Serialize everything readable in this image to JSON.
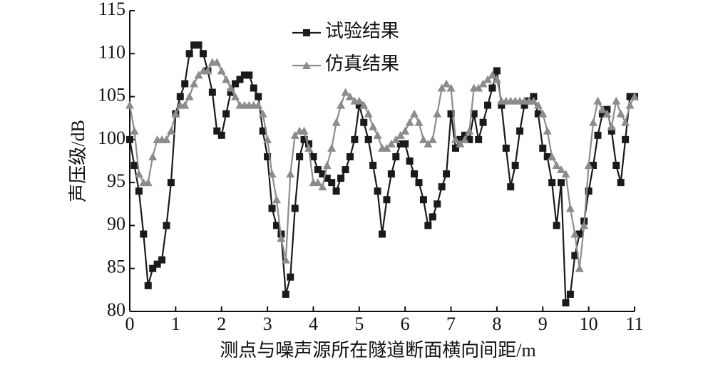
{
  "chart_data": {
    "type": "line",
    "xlabel": "测点与噪声源所在隧道断面横向间距/m",
    "ylabel": "声压级/dB",
    "xlim": [
      0,
      11
    ],
    "xticks": [
      0,
      1,
      2,
      3,
      4,
      5,
      6,
      7,
      8,
      9,
      10,
      11
    ],
    "ylim": [
      80,
      115
    ],
    "yticks": [
      80,
      85,
      90,
      95,
      100,
      105,
      110,
      115
    ],
    "grid": false,
    "legend": "top",
    "x": [
      0,
      0.1,
      0.2,
      0.3,
      0.4,
      0.5,
      0.6,
      0.7,
      0.8,
      0.9,
      1,
      1.1,
      1.2,
      1.3,
      1.4,
      1.5,
      1.6,
      1.7,
      1.8,
      1.9,
      2,
      2.1,
      2.2,
      2.3,
      2.4,
      2.5,
      2.6,
      2.7,
      2.8,
      2.9,
      3,
      3.1,
      3.2,
      3.3,
      3.4,
      3.5,
      3.6,
      3.7,
      3.8,
      3.9,
      4,
      4.1,
      4.2,
      4.3,
      4.4,
      4.5,
      4.6,
      4.7,
      4.8,
      4.9,
      5,
      5.1,
      5.2,
      5.3,
      5.4,
      5.5,
      5.6,
      5.7,
      5.8,
      5.9,
      6,
      6.1,
      6.2,
      6.3,
      6.4,
      6.5,
      6.6,
      6.7,
      6.8,
      6.9,
      7,
      7.1,
      7.2,
      7.3,
      7.4,
      7.5,
      7.6,
      7.7,
      7.8,
      7.9,
      8,
      8.1,
      8.2,
      8.3,
      8.4,
      8.5,
      8.6,
      8.7,
      8.8,
      8.9,
      9,
      9.1,
      9.2,
      9.3,
      9.4,
      9.5,
      9.6,
      9.7,
      9.8,
      9.9,
      10,
      10.1,
      10.2,
      10.3,
      10.4,
      10.5,
      10.6,
      10.7,
      10.8,
      10.9,
      11
    ],
    "series": [
      {
        "name": "试验结果",
        "color": "#1a1a1a",
        "marker": "square",
        "values": [
          100,
          97,
          94,
          89,
          83,
          85,
          85.5,
          86,
          90,
          95,
          103,
          105,
          106.5,
          110,
          111,
          111,
          110,
          108,
          105.5,
          101,
          100.5,
          103,
          105.5,
          106.5,
          107,
          107.5,
          107.5,
          106,
          105,
          101,
          98,
          92,
          90,
          89,
          82,
          84,
          92,
          98,
          100,
          99.5,
          98,
          96.5,
          96,
          95.5,
          95,
          94,
          95.5,
          96.5,
          98,
          100,
          104,
          102,
          100,
          97,
          94,
          89,
          93,
          96,
          98,
          99.5,
          99.5,
          97.5,
          96,
          95,
          93,
          90,
          91,
          92.5,
          94.5,
          96,
          103,
          99,
          100,
          100.5,
          100,
          103,
          100,
          102,
          104,
          106,
          108,
          104,
          99,
          94.5,
          97,
          101,
          104,
          104.5,
          105,
          103,
          99,
          98,
          95,
          90,
          95,
          81,
          82,
          86.5,
          89,
          90.5,
          94,
          97,
          100.5,
          103,
          103.5,
          101,
          97,
          95,
          100,
          105,
          105
        ]
      },
      {
        "name": "仿真结果",
        "color": "#8c8c8c",
        "marker": "triangle",
        "values": [
          104,
          101,
          96,
          95,
          95,
          98,
          100,
          100,
          100,
          101,
          103,
          104,
          104,
          105,
          106.5,
          107.5,
          108,
          108,
          109,
          109,
          108,
          107,
          106,
          105,
          104,
          104,
          104,
          104,
          104,
          103,
          100,
          96,
          93,
          88.5,
          86,
          96,
          100.5,
          101,
          101,
          99,
          95,
          95,
          94.5,
          97,
          99,
          102,
          104,
          105.5,
          105,
          104.5,
          104.5,
          104,
          103,
          101.5,
          100.5,
          99,
          99,
          99.5,
          100,
          100.5,
          101,
          102,
          103,
          102,
          100,
          99.5,
          100,
          103,
          106,
          106.5,
          106,
          100,
          99.5,
          100,
          101,
          106,
          106,
          106.5,
          107,
          107.5,
          107,
          104.5,
          104.5,
          104.5,
          104.5,
          104.5,
          104.5,
          104.5,
          104.5,
          104,
          103,
          101,
          98,
          97,
          96.5,
          96,
          92,
          89,
          85,
          90,
          97,
          102,
          104.5,
          103.5,
          103,
          101.5,
          104.5,
          103,
          102,
          104,
          105
        ]
      }
    ]
  }
}
